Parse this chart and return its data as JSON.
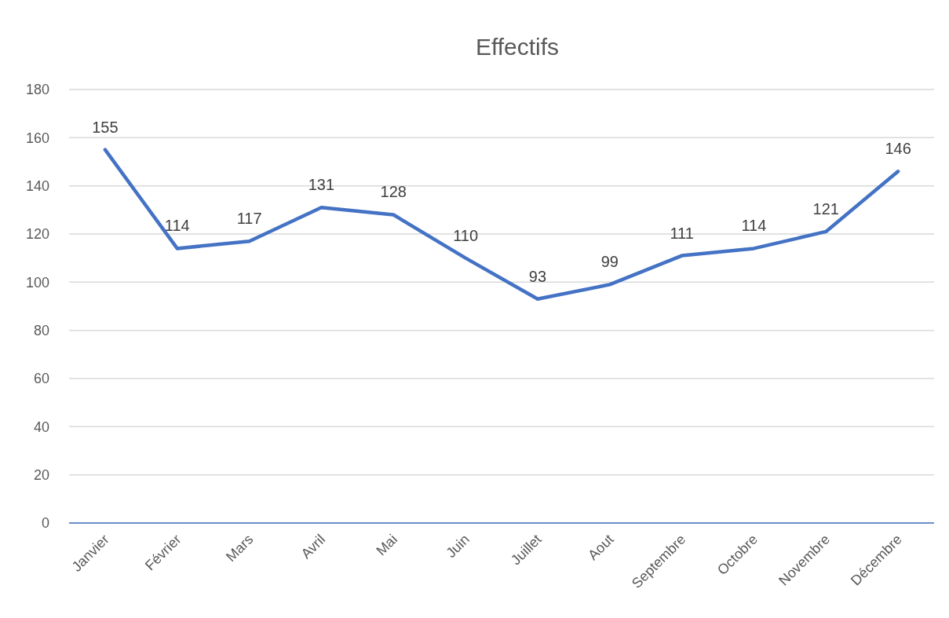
{
  "chart_data": {
    "type": "line",
    "title": "Effectifs",
    "categories": [
      "Janvier",
      "Février",
      "Mars",
      "Avril",
      "Mai",
      "Juin",
      "Juillet",
      "Aout",
      "Septembre",
      "Octobre",
      "Novembre",
      "Décembre"
    ],
    "series": [
      {
        "color": "#4472c4",
        "values": [
          155,
          114,
          117,
          131,
          128,
          110,
          93,
          99,
          111,
          114,
          121,
          146
        ]
      }
    ],
    "ylim": [
      0,
      180
    ],
    "yticks": [
      0,
      20,
      40,
      60,
      80,
      100,
      120,
      140,
      160,
      180
    ],
    "grid": "y",
    "data_labels": true,
    "marker": "none",
    "line_style": "solid"
  }
}
